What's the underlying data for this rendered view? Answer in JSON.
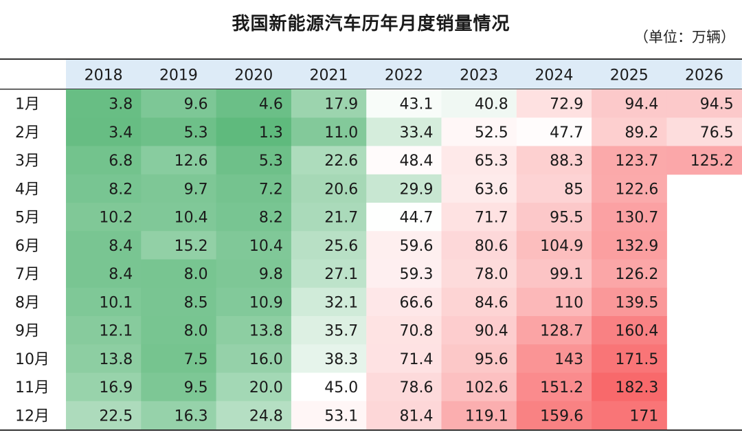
{
  "title": "我国新能源汽车历年月度销量情况",
  "unit_label": "（单位：万辆）",
  "chart_data": {
    "type": "heatmap",
    "title": "我国新能源汽车历年月度销量情况",
    "unit": "（单位：万辆）",
    "columns": [
      "2018",
      "2019",
      "2020",
      "2021",
      "2022",
      "2023",
      "2024",
      "2025",
      "2026"
    ],
    "rows": [
      "1月",
      "2月",
      "3月",
      "4月",
      "5月",
      "6月",
      "7月",
      "8月",
      "9月",
      "10月",
      "11月",
      "12月"
    ],
    "values": [
      [
        "3.8",
        "9.6",
        "4.6",
        "17.9",
        "43.1",
        "40.8",
        "72.9",
        "94.4",
        "94.5"
      ],
      [
        "3.4",
        "5.3",
        "1.3",
        "11.0",
        "33.4",
        "52.5",
        "47.7",
        "89.2",
        "76.5"
      ],
      [
        "6.8",
        "12.6",
        "5.3",
        "22.6",
        "48.4",
        "65.3",
        "88.3",
        "123.7",
        "125.2"
      ],
      [
        "8.2",
        "9.7",
        "7.2",
        "20.6",
        "29.9",
        "63.6",
        "85",
        "122.6",
        null
      ],
      [
        "10.2",
        "10.4",
        "8.2",
        "21.7",
        "44.7",
        "71.7",
        "95.5",
        "130.7",
        null
      ],
      [
        "8.4",
        "15.2",
        "10.4",
        "25.6",
        "59.6",
        "80.6",
        "104.9",
        "132.9",
        null
      ],
      [
        "8.4",
        "8.0",
        "9.8",
        "27.1",
        "59.3",
        "78.0",
        "99.1",
        "126.2",
        null
      ],
      [
        "10.1",
        "8.5",
        "10.9",
        "32.1",
        "66.6",
        "84.6",
        "110",
        "139.5",
        null
      ],
      [
        "12.1",
        "8.0",
        "13.8",
        "35.7",
        "70.8",
        "90.4",
        "128.7",
        "160.4",
        null
      ],
      [
        "13.8",
        "7.5",
        "16.0",
        "38.3",
        "71.4",
        "95.6",
        "143",
        "171.5",
        null
      ],
      [
        "16.9",
        "9.5",
        "20.0",
        "45.0",
        "78.6",
        "102.6",
        "151.2",
        "182.3",
        null
      ],
      [
        "22.5",
        "16.3",
        "24.8",
        "53.1",
        "81.4",
        "119.1",
        "159.6",
        "171",
        null
      ]
    ],
    "color_scale": {
      "low": "#5fba7d",
      "mid": "#ffffff",
      "high": "#f8696b",
      "min_value": 1.3,
      "mid_value": 45.0,
      "max_value": 182.3
    },
    "header_bg": "#ddebf7"
  }
}
